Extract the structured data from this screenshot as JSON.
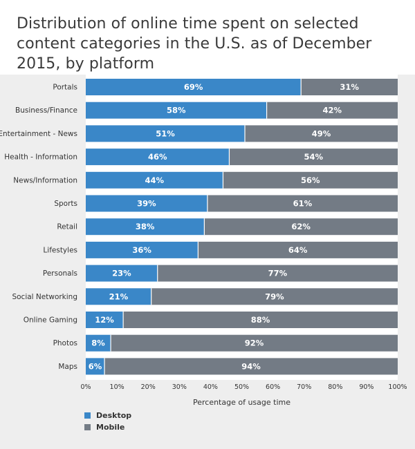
{
  "chart_data": {
    "type": "bar",
    "orientation": "horizontal",
    "stacked": true,
    "title": "Distribution of online time spent on selected content categories in the U.S. as of December 2015, by platform",
    "xlabel": "Percentage of usage time",
    "ylabel": "",
    "xlim": [
      0,
      100
    ],
    "x_ticks": [
      "0%",
      "10%",
      "20%",
      "30%",
      "40%",
      "50%",
      "60%",
      "70%",
      "80%",
      "90%",
      "100%"
    ],
    "categories": [
      "Portals",
      "Business/Finance",
      "Entertainment - News",
      "Health - Information",
      "News/Information",
      "Sports",
      "Retail",
      "Lifestyles",
      "Personals",
      "Social Networking",
      "Online Gaming",
      "Photos",
      "Maps"
    ],
    "series": [
      {
        "name": "Desktop",
        "color": "#3a87c8",
        "values": [
          69,
          58,
          51,
          46,
          44,
          39,
          38,
          36,
          23,
          21,
          12,
          8,
          6
        ],
        "labels": [
          "69%",
          "58%",
          "51%",
          "46%",
          "44%",
          "39%",
          "38%",
          "36%",
          "23%",
          "21%",
          "12%",
          "8%",
          "6%"
        ]
      },
      {
        "name": "Mobile",
        "color": "#737b85",
        "values": [
          31,
          42,
          49,
          54,
          56,
          61,
          62,
          64,
          77,
          79,
          88,
          92,
          94
        ],
        "labels": [
          "31%",
          "42%",
          "49%",
          "54%",
          "56%",
          "61%",
          "62%",
          "64%",
          "77%",
          "79%",
          "88%",
          "92%",
          "94%"
        ]
      }
    ],
    "legend": {
      "position": "bottom-left"
    },
    "grid": false
  },
  "colors": {
    "background": "#ffffff",
    "band": "#eeeeee",
    "desktop": "#3a87c8",
    "mobile": "#737b85"
  }
}
